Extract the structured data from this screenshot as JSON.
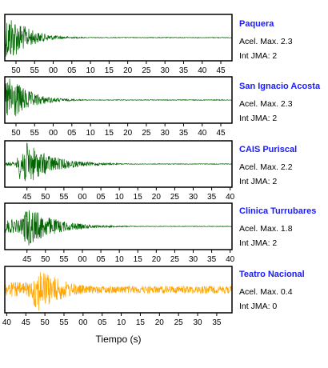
{
  "chart_data": {
    "type": "line",
    "xlabel": "Tiempo (s)",
    "panels": [
      {
        "station": "Paquera",
        "acel_label": "Acel. Max. 2.3",
        "int_label": "Int JMA: 2",
        "color": "#006400",
        "tick_labels": [
          "50",
          "55",
          "00",
          "05",
          "10",
          "15",
          "20",
          "25",
          "30",
          "35",
          "40",
          "45"
        ],
        "tick_seconds": [
          50,
          55,
          60,
          65,
          70,
          75,
          80,
          85,
          90,
          95,
          100,
          105
        ],
        "x_range_seconds": [
          47,
          108
        ],
        "peak_seconds": 49,
        "amplitude": 1.0
      },
      {
        "station": "San Ignacio Acosta",
        "acel_label": "Acel. Max. 2.3",
        "int_label": "Int JMA: 2",
        "color": "#006400",
        "tick_labels": [
          "50",
          "55",
          "00",
          "05",
          "10",
          "15",
          "20",
          "25",
          "30",
          "35",
          "40",
          "45"
        ],
        "tick_seconds": [
          50,
          55,
          60,
          65,
          70,
          75,
          80,
          85,
          90,
          95,
          100,
          105
        ],
        "x_range_seconds": [
          47,
          108
        ],
        "peak_seconds": 49,
        "amplitude": 1.0
      },
      {
        "station": "CAIS Puriscal",
        "acel_label": "Acel. Max. 2.2",
        "int_label": "Int JMA: 2",
        "color": "#006400",
        "tick_labels": [
          "45",
          "50",
          "55",
          "00",
          "05",
          "10",
          "15",
          "20",
          "25",
          "30",
          "35",
          "40"
        ],
        "tick_seconds": [
          45,
          50,
          55,
          60,
          65,
          70,
          75,
          80,
          85,
          90,
          95,
          100
        ],
        "x_range_seconds": [
          39,
          100.5
        ],
        "peak_seconds": 45,
        "amplitude": 0.95
      },
      {
        "station": "Clinica Turrubares",
        "acel_label": "Acel. Max. 1.8",
        "int_label": "Int JMA: 2",
        "color": "#006400",
        "tick_labels": [
          "45",
          "50",
          "55",
          "00",
          "05",
          "10",
          "15",
          "20",
          "25",
          "30",
          "35",
          "40"
        ],
        "tick_seconds": [
          45,
          50,
          55,
          60,
          65,
          70,
          75,
          80,
          85,
          90,
          95,
          100
        ],
        "x_range_seconds": [
          39,
          100.5
        ],
        "peak_seconds": 46,
        "amplitude": 0.85
      },
      {
        "station": "Teatro Nacional",
        "acel_label": "Acel. Max. 0.4",
        "int_label": "Int JMA: 0",
        "color": "#ffa500",
        "tick_labels": [
          "40",
          "45",
          "50",
          "55",
          "00",
          "05",
          "10",
          "15",
          "20",
          "25",
          "30",
          "35"
        ],
        "tick_seconds": [
          40,
          45,
          50,
          55,
          60,
          65,
          70,
          75,
          80,
          85,
          90,
          95
        ],
        "x_range_seconds": [
          39.5,
          99
        ],
        "peak_seconds": 49,
        "amplitude": 0.95
      }
    ]
  }
}
